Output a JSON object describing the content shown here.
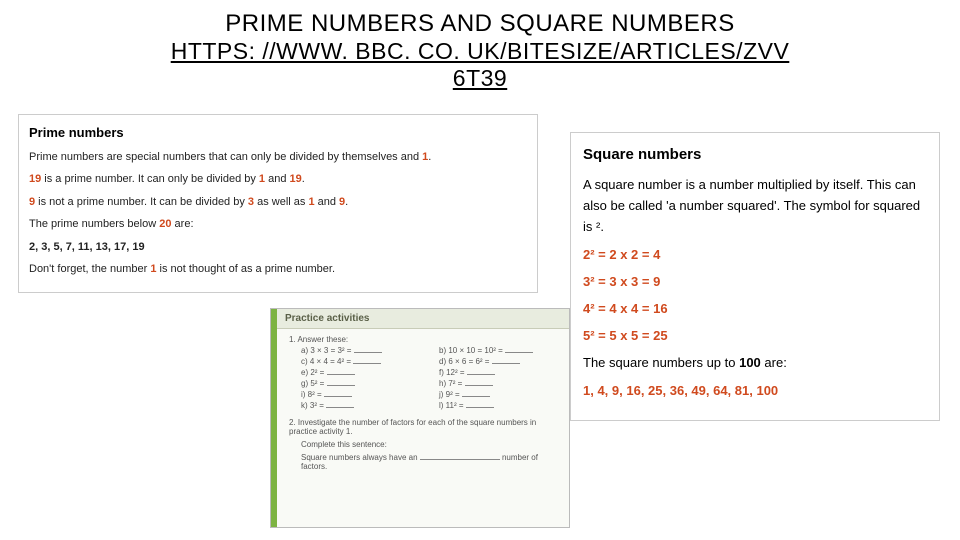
{
  "title": {
    "line1": "PRIME NUMBERS AND SQUARE NUMBERS",
    "link_line1": "HTTPS: //WWW. BBC. CO. UK/BITESIZE/ARTICLES/ZVV",
    "link_line2": "6T39"
  },
  "prime": {
    "heading": "Prime numbers",
    "p1_a": "Prime numbers are special numbers that can only be divided by themselves and ",
    "p1_b": "1",
    "p1_c": ".",
    "p2_a": "19",
    "p2_b": " is a prime number. It can only be divided by ",
    "p2_c": "1",
    "p2_d": " and ",
    "p2_e": "19",
    "p2_f": ".",
    "p3_a": "9",
    "p3_b": " is not a prime number. It can be divided by ",
    "p3_c": "3",
    "p3_d": " as well as ",
    "p3_e": "1",
    "p3_f": " and ",
    "p3_g": "9",
    "p3_h": ".",
    "p4_a": "The prime numbers below ",
    "p4_b": "20",
    "p4_c": " are:",
    "list": "2, 3, 5, 7, 11, 13, 17, 19",
    "p5_a": "Don't forget, the number ",
    "p5_b": "1",
    "p5_c": " is not thought of as a prime number."
  },
  "square": {
    "heading": "Square numbers",
    "intro": "A square number is a number multiplied by itself. This can also be called 'a number squared'. The symbol for squared is ².",
    "eq1": "2² = 2 x 2 = 4",
    "eq2": "3² = 3 x 3 = 9",
    "eq3": "4² = 4 x 4 = 16",
    "eq4": "5² = 5 x 5 = 25",
    "up_to_a": "The square numbers up to ",
    "up_to_b": "100",
    "up_to_c": " are:",
    "list": "1, 4, 9, 16, 25, 36, 49, 64, 81, 100"
  },
  "practice": {
    "header": "Practice activities",
    "q1_lead": "1.   Answer these:",
    "rows": [
      {
        "l": "a)  3 × 3 = 3² =",
        "r": "b)  10 × 10 = 10² ="
      },
      {
        "l": "c)  4 × 4 = 4² =",
        "r": "d)  6 × 6 = 6² ="
      },
      {
        "l": "e)  2²           =",
        "r": "f)  12²          ="
      },
      {
        "l": "g)  5²           =",
        "r": "h)  7²           ="
      },
      {
        "l": "i)   8²           =",
        "r": "j)   9²           ="
      },
      {
        "l": "k)  3²           =",
        "r": "l)   11²          ="
      }
    ],
    "q2_a": "2.   Investigate the number of factors for each of the square numbers in practice activity 1.",
    "q2_b": "Complete this sentence:",
    "q2_c_pre": "Square numbers always have an ",
    "q2_c_post": " number of factors."
  },
  "colors": {
    "highlight": "#d04a1e",
    "practice_bar": "#7db342"
  }
}
